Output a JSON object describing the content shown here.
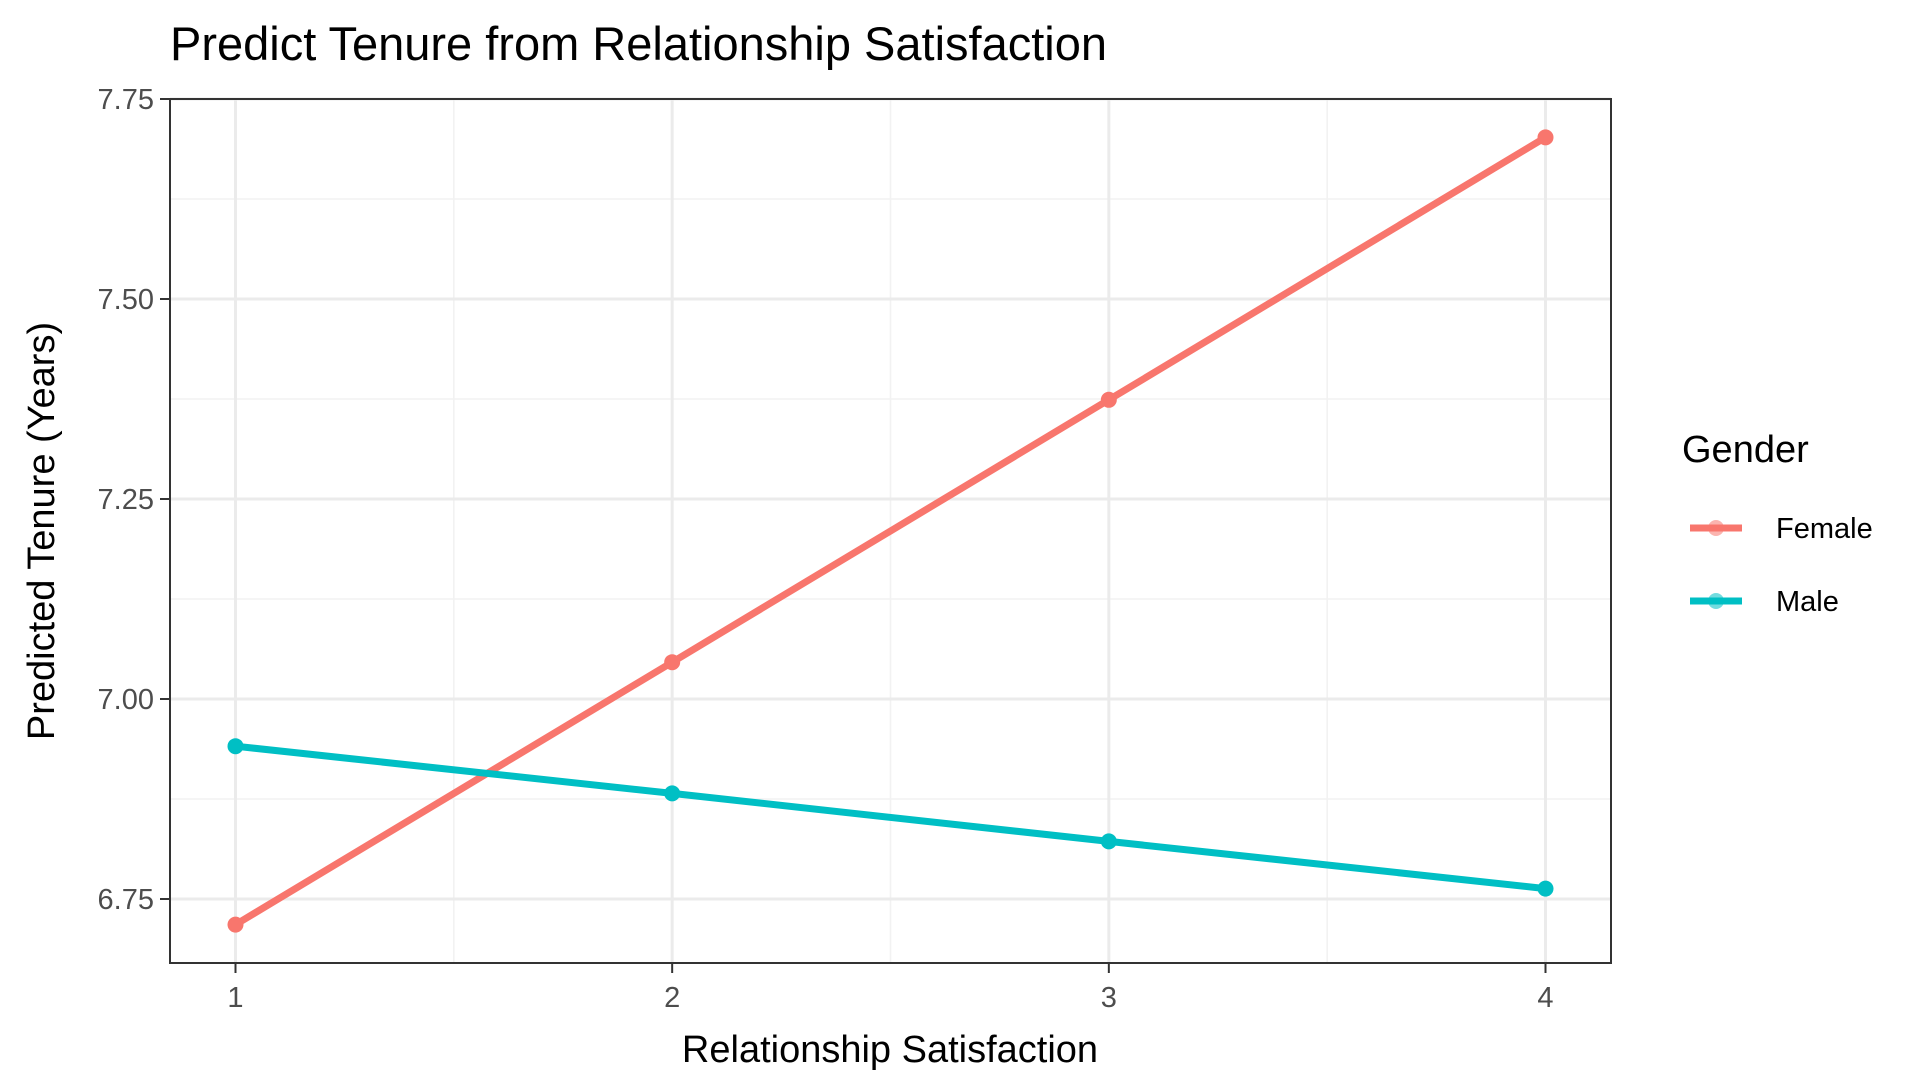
{
  "chart_data": {
    "type": "line",
    "title": "Predict Tenure from Relationship Satisfaction",
    "xlabel": "Relationship Satisfaction",
    "ylabel": "Predicted Tenure (Years)",
    "x": [
      1,
      2,
      3,
      4
    ],
    "x_ticks": [
      1,
      2,
      3,
      4
    ],
    "x_tick_labels": [
      "1",
      "2",
      "3",
      "4"
    ],
    "xlim": [
      0.85,
      4.15
    ],
    "y_ticks": [
      6.75,
      7.0,
      7.25,
      7.5,
      7.75
    ],
    "y_tick_labels": [
      "6.75",
      "7.00",
      "7.25",
      "7.50",
      "7.75"
    ],
    "ylim": [
      6.67,
      7.75
    ],
    "grid": true,
    "legend": {
      "title": "Gender",
      "position": "right"
    },
    "series": [
      {
        "name": "Female",
        "color": "#F8766D",
        "values": [
          6.718,
          7.046,
          7.374,
          7.702
        ]
      },
      {
        "name": "Male",
        "color": "#00BFC4",
        "values": [
          6.941,
          6.882,
          6.822,
          6.763
        ]
      }
    ]
  }
}
